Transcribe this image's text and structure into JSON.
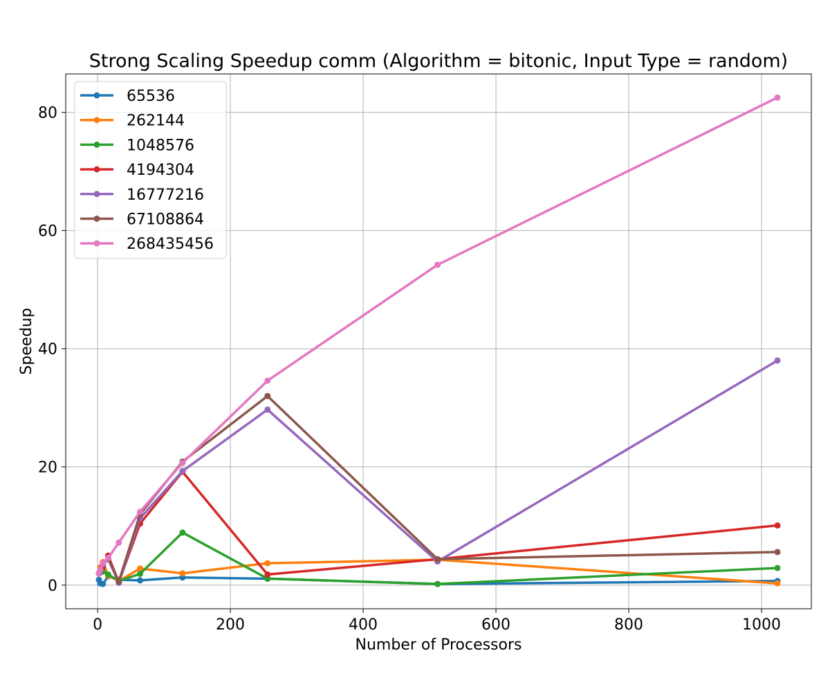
{
  "chart_data": {
    "type": "line",
    "title": "Strong Scaling Speedup comm (Algorithm = bitonic, Input Type = random)",
    "xlabel": "Number of Processors",
    "ylabel": "Speedup",
    "xlim": [
      -48,
      1075
    ],
    "ylim": [
      -4,
      86.5
    ],
    "xticks": [
      0,
      200,
      400,
      600,
      800,
      1000
    ],
    "yticks": [
      0,
      20,
      40,
      60,
      80
    ],
    "grid": true,
    "legend_position": "top-left",
    "x": [
      2,
      4,
      8,
      16,
      32,
      64,
      128,
      256,
      512,
      1024
    ],
    "series": [
      {
        "name": "65536",
        "color": "#1f77b4",
        "x": [
          2,
          4,
          8,
          16,
          32,
          64,
          128,
          256,
          512,
          1024
        ],
        "values": [
          0.9,
          0.3,
          0.2,
          1.5,
          0.9,
          0.8,
          1.3,
          1.1,
          0.2,
          0.7
        ]
      },
      {
        "name": "262144",
        "color": "#ff7f0e",
        "x": [
          2,
          4,
          8,
          16,
          32,
          64,
          128,
          256,
          512,
          1024
        ],
        "values": [
          2.0,
          3.0,
          3.9,
          1.6,
          0.7,
          2.8,
          2.0,
          3.7,
          4.3,
          0.3
        ]
      },
      {
        "name": "1048576",
        "color": "#2ca02c",
        "x": [
          2,
          4,
          8,
          16,
          32,
          64,
          128,
          256,
          512,
          1024
        ],
        "values": [
          2.0,
          2.1,
          2.3,
          1.8,
          0.7,
          1.9,
          8.9,
          1.1,
          0.2,
          2.9
        ]
      },
      {
        "name": "4194304",
        "color": "#d62728",
        "x": [
          2,
          4,
          8,
          16,
          32,
          64,
          128,
          256,
          512,
          1024
        ],
        "values": [
          2.0,
          2.3,
          3.1,
          5.0,
          0.5,
          10.4,
          19.2,
          1.8,
          4.4,
          10.1
        ]
      },
      {
        "name": "16777216",
        "color": "#9467bd",
        "x": [
          2,
          4,
          8,
          16,
          32,
          64,
          128,
          256,
          512,
          1024
        ],
        "values": [
          2.0,
          2.3,
          3.5,
          4.4,
          0.4,
          11.3,
          19.3,
          29.7,
          4.0,
          38.0
        ]
      },
      {
        "name": "67108864",
        "color": "#8c564b",
        "x": [
          2,
          4,
          8,
          16,
          32,
          64,
          128,
          256,
          512,
          1024
        ],
        "values": [
          2.0,
          2.4,
          3.6,
          4.5,
          0.6,
          12.0,
          20.9,
          32.0,
          4.4,
          5.6
        ]
      },
      {
        "name": "268435456",
        "color": "#e377c2",
        "x": [
          2,
          4,
          8,
          16,
          32,
          64,
          128,
          256,
          512,
          1024
        ],
        "values": [
          2.0,
          2.6,
          3.7,
          4.6,
          7.2,
          12.4,
          20.7,
          34.6,
          54.2,
          82.5
        ]
      }
    ]
  }
}
